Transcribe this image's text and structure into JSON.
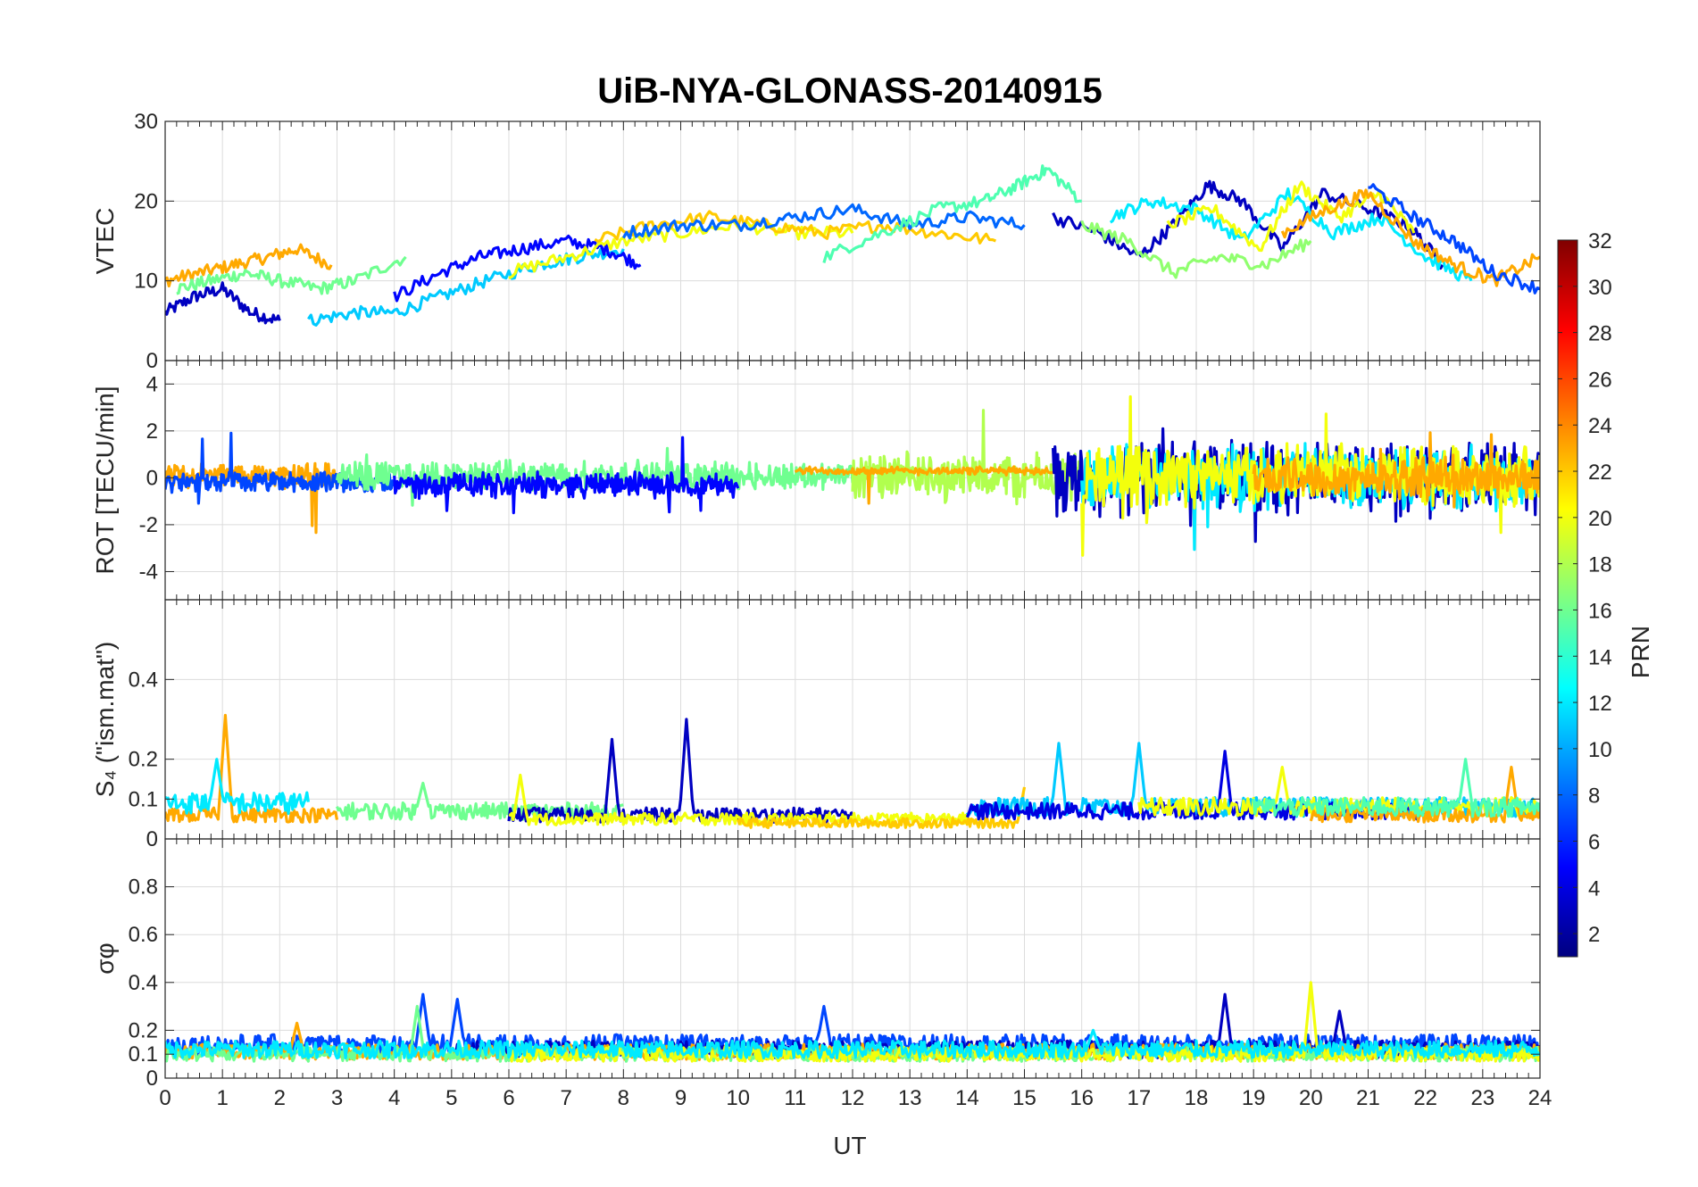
{
  "chart_data": {
    "type": "line",
    "title": "UiB-NYA-GLONASS-20140915",
    "xlabel": "UT",
    "xlim": [
      0,
      24
    ],
    "x_ticks": [
      "0",
      "1",
      "2",
      "3",
      "4",
      "5",
      "6",
      "7",
      "8",
      "9",
      "10",
      "11",
      "12",
      "13",
      "14",
      "15",
      "16",
      "17",
      "18",
      "19",
      "20",
      "21",
      "22",
      "23",
      "24"
    ],
    "colorbar": {
      "label": "PRN",
      "colormap": "jet",
      "range": [
        1,
        32
      ],
      "ticks": [
        "2",
        "4",
        "6",
        "8",
        "10",
        "12",
        "14",
        "16",
        "18",
        "20",
        "22",
        "24",
        "26",
        "28",
        "30",
        "32"
      ],
      "colors": [
        "#00008f",
        "#0000ff",
        "#0080ff",
        "#00ffff",
        "#80ff80",
        "#ffff00",
        "#ff8000",
        "#ff0000",
        "#800000"
      ]
    },
    "panels": [
      {
        "id": "vtec",
        "ylabel": "VTEC",
        "ylim": [
          0,
          30
        ],
        "y_ticks": [
          "0",
          "10",
          "20",
          "30"
        ],
        "series": [
          {
            "prn": 3,
            "x": [
              0.0,
              0.5,
              1.0,
              1.5,
              2.0
            ],
            "y": [
              6,
              8,
              9,
              6,
              5
            ]
          },
          {
            "prn": 23,
            "x": [
              0.0,
              0.6,
              1.2,
              1.8,
              2.3,
              2.9
            ],
            "y": [
              10,
              11,
              12,
              13,
              14,
              12
            ]
          },
          {
            "prn": 16,
            "x": [
              0.2,
              0.8,
              1.4,
              2.0,
              2.7,
              3.3,
              4.2
            ],
            "y": [
              9,
              10,
              11,
              10,
              9,
              10,
              13
            ]
          },
          {
            "prn": 11,
            "x": [
              2.5,
              3.3,
              4.0,
              4.8,
              5.6,
              6.5,
              7.2,
              8.0
            ],
            "y": [
              5,
              6,
              6,
              8,
              10,
              12,
              13,
              14
            ]
          },
          {
            "prn": 5,
            "x": [
              4.0,
              4.8,
              5.5,
              6.2,
              7.0,
              7.7,
              8.3
            ],
            "y": [
              8,
              11,
              13,
              14,
              15,
              14,
              12
            ]
          },
          {
            "prn": 20,
            "x": [
              6.0,
              7.0,
              8.0,
              9.0,
              10.0,
              11.0,
              12.0
            ],
            "y": [
              11,
              13,
              15,
              16,
              17,
              16,
              16
            ]
          },
          {
            "prn": 22,
            "x": [
              7.5,
              8.5,
              9.5,
              10.5,
              11.5,
              12.5,
              13.5,
              14.5
            ],
            "y": [
              15,
              17,
              18,
              17,
              16,
              17,
              16,
              15
            ]
          },
          {
            "prn": 8,
            "x": [
              8.0,
              9.0,
              10.0,
              11.0,
              12.0,
              13.0,
              14.0,
              15.0
            ],
            "y": [
              16,
              17,
              17,
              18,
              19,
              17,
              18,
              17
            ]
          },
          {
            "prn": 15,
            "x": [
              11.5,
              12.5,
              13.5,
              14.3,
              14.9,
              15.4,
              16.0
            ],
            "y": [
              13,
              16,
              19,
              20,
              22,
              24,
              20
            ]
          },
          {
            "prn": 3,
            "x": [
              15.5,
              16.3,
              17.0,
              17.6,
              18.2,
              18.8,
              19.5,
              20.2,
              21.0,
              21.7,
              22.3
            ],
            "y": [
              18,
              16,
              13,
              17,
              22,
              20,
              14,
              21,
              19,
              17,
              12
            ]
          },
          {
            "prn": 12,
            "x": [
              16.5,
              17.2,
              18.0,
              18.8,
              19.6,
              20.4,
              21.2,
              22.0,
              22.8
            ],
            "y": [
              18,
              20,
              19,
              15,
              21,
              16,
              18,
              13,
              10
            ]
          },
          {
            "prn": 20,
            "x": [
              17.5,
              18.3,
              19.1,
              19.8,
              20.5,
              21.2,
              21.8
            ],
            "y": [
              17,
              19,
              14,
              22,
              18,
              21,
              16
            ]
          },
          {
            "prn": 17,
            "x": [
              16.0,
              16.8,
              17.6,
              18.4,
              19.2,
              20.0
            ],
            "y": [
              17,
              15,
              11,
              13,
              12,
              15
            ]
          },
          {
            "prn": 23,
            "x": [
              19.5,
              20.3,
              21.0,
              21.8,
              22.5,
              23.2,
              24.0
            ],
            "y": [
              16,
              19,
              21,
              15,
              12,
              10,
              13
            ]
          },
          {
            "prn": 7,
            "x": [
              21.0,
              21.8,
              22.5,
              23.2,
              24.0
            ],
            "y": [
              22,
              18,
              15,
              11,
              9
            ]
          }
        ]
      },
      {
        "id": "rot",
        "ylabel": "ROT [TECU/min]",
        "ylim": [
          -5.2,
          5.0
        ],
        "y_ticks": [
          "-4",
          "-2",
          "0",
          "2",
          "4"
        ],
        "series": [
          {
            "prn": 23,
            "x": [
              0,
              3.0
            ],
            "amp": 0.6,
            "base": 0.1
          },
          {
            "prn": 7,
            "x": [
              0,
              4.0
            ],
            "amp": 0.5,
            "base": -0.2
          },
          {
            "prn": 16,
            "x": [
              3,
              12
            ],
            "amp": 0.7,
            "base": 0.1
          },
          {
            "prn": 5,
            "x": [
              4,
              10
            ],
            "amp": 0.6,
            "base": -0.3
          },
          {
            "prn": 18,
            "x": [
              12,
              16
            ],
            "amp": 1.2,
            "base": 0.0
          },
          {
            "prn": 23,
            "x": [
              11,
              15.5
            ],
            "amp": 0.2,
            "base": 0.3
          },
          {
            "prn": 3,
            "x": [
              15.5,
              24
            ],
            "amp": 1.8,
            "base": 0.0
          },
          {
            "prn": 12,
            "x": [
              16,
              24
            ],
            "amp": 1.6,
            "base": 0.0
          },
          {
            "prn": 20,
            "x": [
              16,
              24
            ],
            "amp": 1.5,
            "base": 0.1
          },
          {
            "prn": 23,
            "x": [
              19,
              24
            ],
            "amp": 1.0,
            "base": 0.0
          }
        ]
      },
      {
        "id": "s4",
        "ylabel": "S₄ (\"ism.mat\")",
        "ylim": [
          0,
          0.6
        ],
        "y_ticks": [
          "0",
          "0.1",
          "0.2",
          "0.4"
        ],
        "series": [
          {
            "prn": 23,
            "x": [
              0,
              3.0
            ],
            "base": 0.06,
            "spikes": [
              [
                1.05,
                0.31
              ]
            ]
          },
          {
            "prn": 12,
            "x": [
              0,
              2.5
            ],
            "base": 0.09,
            "spikes": [
              [
                0.9,
                0.2
              ]
            ]
          },
          {
            "prn": 16,
            "x": [
              3,
              8
            ],
            "base": 0.07,
            "spikes": [
              [
                4.5,
                0.14
              ]
            ]
          },
          {
            "prn": 3,
            "x": [
              6,
              12
            ],
            "base": 0.06,
            "spikes": [
              [
                7.8,
                0.25
              ],
              [
                9.1,
                0.3
              ]
            ]
          },
          {
            "prn": 20,
            "x": [
              6,
              14
            ],
            "base": 0.05,
            "spikes": [
              [
                6.2,
                0.16
              ]
            ]
          },
          {
            "prn": 22,
            "x": [
              10,
              15
            ],
            "base": 0.04,
            "spikes": [
              [
                15,
                0.13
              ]
            ]
          },
          {
            "prn": 11,
            "x": [
              14,
              24
            ],
            "base": 0.08,
            "spikes": [
              [
                15.6,
                0.24
              ],
              [
                17.0,
                0.24
              ]
            ]
          },
          {
            "prn": 4,
            "x": [
              14,
              22
            ],
            "base": 0.07,
            "spikes": [
              [
                18.5,
                0.22
              ]
            ]
          },
          {
            "prn": 20,
            "x": [
              17,
              24
            ],
            "base": 0.08,
            "spikes": [
              [
                19.5,
                0.18
              ]
            ]
          },
          {
            "prn": 23,
            "x": [
              20,
              24
            ],
            "base": 0.06,
            "spikes": [
              [
                23.5,
                0.18
              ]
            ]
          },
          {
            "prn": 15,
            "x": [
              19,
              24
            ],
            "base": 0.08,
            "spikes": [
              [
                22.7,
                0.2
              ]
            ]
          }
        ]
      },
      {
        "id": "sigma_phi",
        "ylabel": "σφ",
        "ylim": [
          0,
          1.0
        ],
        "y_ticks": [
          "0",
          "0.1",
          "0.2",
          "0.4",
          "0.6",
          "0.8"
        ],
        "series": [
          {
            "prn": 7,
            "x": [
              0,
              24
            ],
            "base": 0.14,
            "spikes": [
              [
                4.5,
                0.35
              ],
              [
                5.1,
                0.33
              ],
              [
                11.5,
                0.3
              ]
            ]
          },
          {
            "prn": 3,
            "x": [
              5,
              24
            ],
            "base": 0.12,
            "spikes": [
              [
                18.5,
                0.35
              ],
              [
                20.5,
                0.28
              ]
            ]
          },
          {
            "prn": 23,
            "x": [
              0,
              24
            ],
            "base": 0.11,
            "spikes": [
              [
                2.3,
                0.23
              ]
            ]
          },
          {
            "prn": 16,
            "x": [
              0,
              24
            ],
            "base": 0.1,
            "spikes": [
              [
                4.4,
                0.3
              ]
            ]
          },
          {
            "prn": 20,
            "x": [
              6,
              24
            ],
            "base": 0.1,
            "spikes": [
              [
                20.0,
                0.4
              ]
            ]
          },
          {
            "prn": 12,
            "x": [
              0,
              24
            ],
            "base": 0.12,
            "spikes": [
              [
                16.2,
                0.2
              ]
            ]
          }
        ]
      }
    ]
  }
}
